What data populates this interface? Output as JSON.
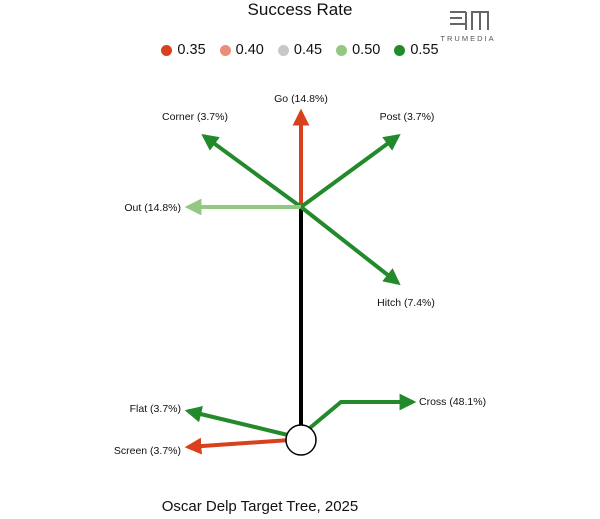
{
  "legend": {
    "title": "Success Rate",
    "items": [
      {
        "label": "0.35",
        "color": "#d9401c"
      },
      {
        "label": "0.40",
        "color": "#ea8e79"
      },
      {
        "label": "0.45",
        "color": "#c8c8c8"
      },
      {
        "label": "0.50",
        "color": "#93c882"
      },
      {
        "label": "0.55",
        "color": "#238a2c"
      }
    ]
  },
  "brand": {
    "name": "TRUMEDIA",
    "icon": "trumedia-logo-icon"
  },
  "caption": "Oscar Delp Target Tree, 2025",
  "routes": [
    {
      "id": "go",
      "label": "Go (14.8%)",
      "color": "#d9401c"
    },
    {
      "id": "post",
      "label": "Post (3.7%)",
      "color": "#238a2c"
    },
    {
      "id": "corner",
      "label": "Corner (3.7%)",
      "color": "#238a2c"
    },
    {
      "id": "out",
      "label": "Out (14.8%)",
      "color": "#93c882"
    },
    {
      "id": "hitch",
      "label": "Hitch (7.4%)",
      "color": "#238a2c"
    },
    {
      "id": "cross",
      "label": "Cross (48.1%)",
      "color": "#238a2c"
    },
    {
      "id": "flat",
      "label": "Flat (3.7%)",
      "color": "#238a2c"
    },
    {
      "id": "screen",
      "label": "Screen (3.7%)",
      "color": "#d9401c"
    }
  ],
  "stem_color": "#000000"
}
